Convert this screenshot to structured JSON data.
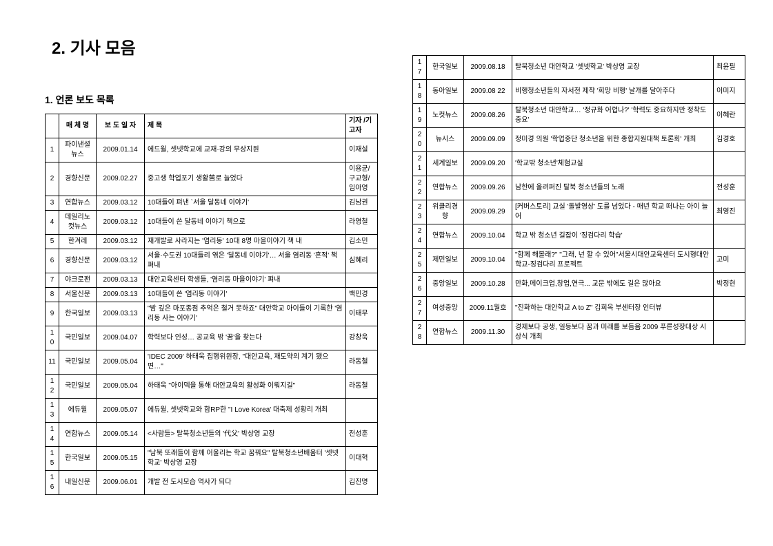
{
  "main_title": "2. 기사 모음",
  "section_title": "1. 언론 보도 목록",
  "headers": {
    "num": "",
    "media": "매 체 명",
    "date": "보 도\n일 자",
    "title": "제        목",
    "author": "기자\n/기고자"
  },
  "rows_left": [
    {
      "n": "1",
      "media": "파이낸셜\n뉴스",
      "date": "2009.01.14",
      "title": "에드윌, 셋넷학교에 교재·강의 무상지원",
      "author": "이재설"
    },
    {
      "n": "2",
      "media": "경향신문",
      "date": "2009.02.27",
      "title": "중고생 학업포기 생활苦로 늘었다",
      "author": "이용균/\n구교형/\n임아영"
    },
    {
      "n": "3",
      "media": "연합뉴스",
      "date": "2009.03.12",
      "title": "10대들이 펴낸 `서울 달동네 이야기'",
      "author": "김남권"
    },
    {
      "n": "4",
      "media": "데일리노\n컷뉴스",
      "date": "2009.03.12",
      "title": "10대들이 쓴 달동네 이야기 책으로",
      "author": "라영철"
    },
    {
      "n": "5",
      "media": "한겨레",
      "date": "2009.03.12",
      "title": "재개발로 사라지는 '염리동' 10대 8명 마을이야기 책 내",
      "author": "김소민"
    },
    {
      "n": "6",
      "media": "경향신문",
      "date": "2009.03.12",
      "title": "서울·수도권 10대들리 엮은 '달동네 이야기'… 서울 염리동 '흔적' 책 펴내",
      "author": "심혜리"
    },
    {
      "n": "7",
      "media": "야크로팬",
      "date": "2009.03.13",
      "title": "대안교육센터 학생들, '염리동 마을이야기' 펴내",
      "author": ""
    },
    {
      "n": "8",
      "media": "서울신문",
      "date": "2009.03.13",
      "title": "10대들이 쓴 '염리동 이야기'",
      "author": "백민경"
    },
    {
      "n": "9",
      "media": "한국일보",
      "date": "2009.03.13",
      "title": "\"밤 깊은 마포종점 추억은 철거 못하죠\" 대안학교 아이들이 기록한 '염리동 사는 이야기'",
      "author": "이태무"
    },
    {
      "n": "10",
      "media": "국민일보",
      "date": "2009.04.07",
      "title": "학력보다 인성… 공교육 밖 '꿈'을 찾는다",
      "author": "강창욱"
    },
    {
      "n": "11",
      "media": "국민일보",
      "date": "2009.05.04",
      "title": "'IDEC 2009' 하태욱 집행위원장, \"대안교육, 재도약의 계기 됐으면…\"",
      "author": "라동철"
    },
    {
      "n": "12",
      "media": "국민일보",
      "date": "2009.05.04",
      "title": "하태욱 \"아이덱을 통해 대안교육의 활성화 이뤄지길\"",
      "author": "라동철"
    },
    {
      "n": "13",
      "media": "에듀윌",
      "date": "2009.05.07",
      "title": "에듀윌, 셋넷학교와 함RP한 \"I Love Korea' 대축제 성황리 개최",
      "author": ""
    },
    {
      "n": "14",
      "media": "연합뉴스",
      "date": "2009.05.14",
      "title": "<사람들> 탈북청소년들의 '代父' 박상영 교장",
      "author": "전성훈"
    },
    {
      "n": "15",
      "media": "한국일보",
      "date": "2009.05.15",
      "title": "\"남북 또래들이 함께 어울리는 학교 꿈꿔요\" 탈북청소년배움터 '셋넷학교' 박상영 교장",
      "author": "이대혁"
    },
    {
      "n": "16",
      "media": "내일신문",
      "date": "2009.06.01",
      "title": "개발 전 도시모습 역사가 되다",
      "author": "김진명"
    }
  ],
  "rows_right": [
    {
      "n": "17",
      "media": "한국일보",
      "date": "2009.08.18",
      "title": "탈북청소년 대안학교 '셋넷학교' 박상영 교장",
      "author": "최윤필"
    },
    {
      "n": "18",
      "media": "동아일보",
      "date": "2009.08 22",
      "title": "비행청소년들의 자서전 제작 '희망 비행' 날개를 달아주다",
      "author": "이미지"
    },
    {
      "n": "19",
      "media": "노컷뉴스",
      "date": "2009.08.26",
      "title": "탈북청소년 대안학교… '정규화 어렵나?' '학력도 중요하지만 정착도 중요'",
      "author": "이혜란"
    },
    {
      "n": "20",
      "media": "뉴시스",
      "date": "2009.09.09",
      "title": "정미경 의원 '학업중단 청소년을 위한 종합지원대책 토론회' 개최",
      "author": "김경호"
    },
    {
      "n": "21",
      "media": "세계일보",
      "date": "2009.09.20",
      "title": "'학교밖 청소년'체험교실",
      "author": ""
    },
    {
      "n": "22",
      "media": "연합뉴스",
      "date": "2009.09.26",
      "title": "남한에 울려퍼진 탈북 청소년들의 노래",
      "author": "전성훈"
    },
    {
      "n": "23",
      "media": "위클리경\n향",
      "date": "2009.09.29",
      "title": "[커버스토리] 교실 '돌발영상' 도를 넘었다 - 매년 학교 떠나는 아이 늘어",
      "author": "최영진"
    },
    {
      "n": "24",
      "media": "연합뉴스",
      "date": "2009.10.04",
      "title": "학교 밖 청소년 길잡이 '징검다리 학습'",
      "author": ""
    },
    {
      "n": "25",
      "media": "제민일보",
      "date": "2009.10.04",
      "title": "\"함께 해볼래?\" \"그래, 넌 할 수 있어\"서울시대안교육센터 도시형대안학교-징검다리 프로젝트",
      "author": "고미"
    },
    {
      "n": "26",
      "media": "중앙일보",
      "date": "2009.10.28",
      "title": "만화,메이크업,창업,연극... 교문 밖에도 길은 많아요",
      "author": "박정현"
    },
    {
      "n": "27",
      "media": "여성중앙",
      "date": "2009.11월호",
      "title": "\"진화하는 대안학교 A to Z\" 김희옥 부센터장 인터뷰",
      "author": ""
    },
    {
      "n": "28",
      "media": "연합뉴스",
      "date": "2009.11.30",
      "title": "경제보다 공생, 일등보다 꿈과 미래를 보듬음 2009 푸른성장대상 시상식 개최",
      "author": ""
    }
  ]
}
